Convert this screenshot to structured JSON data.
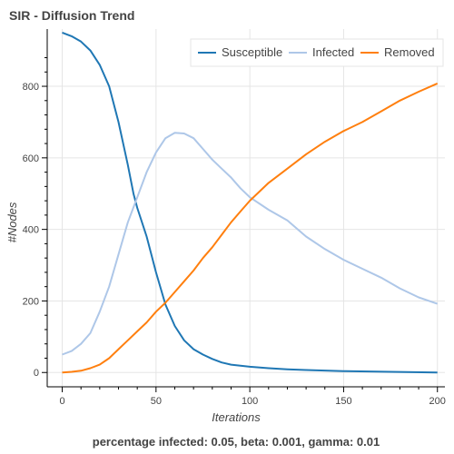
{
  "chart_data": {
    "type": "line",
    "title": "SIR - Diffusion Trend",
    "xlabel": "Iterations",
    "ylabel": "#Nodes",
    "xlim": [
      -8,
      204
    ],
    "ylim": [
      -40,
      960
    ],
    "xticks": [
      0,
      50,
      100,
      150,
      200
    ],
    "yticks": [
      0,
      200,
      400,
      600,
      800
    ],
    "grid": true,
    "legend": "top-right",
    "footer": "percentage infected: 0.05, beta: 0.001, gamma: 0.01",
    "series": [
      {
        "name": "Susceptible",
        "color": "#1f77b4",
        "points": [
          [
            0,
            950
          ],
          [
            5,
            940
          ],
          [
            10,
            925
          ],
          [
            15,
            900
          ],
          [
            20,
            860
          ],
          [
            25,
            800
          ],
          [
            30,
            700
          ],
          [
            35,
            580
          ],
          [
            38,
            500
          ],
          [
            40,
            460
          ],
          [
            45,
            380
          ],
          [
            50,
            280
          ],
          [
            55,
            190
          ],
          [
            60,
            130
          ],
          [
            65,
            90
          ],
          [
            70,
            65
          ],
          [
            75,
            50
          ],
          [
            80,
            38
          ],
          [
            85,
            28
          ],
          [
            90,
            22
          ],
          [
            100,
            16
          ],
          [
            110,
            12
          ],
          [
            120,
            9
          ],
          [
            130,
            7
          ],
          [
            150,
            4
          ],
          [
            175,
            2
          ],
          [
            200,
            0
          ]
        ]
      },
      {
        "name": "Infected",
        "color": "#aec7e8",
        "points": [
          [
            0,
            50
          ],
          [
            5,
            60
          ],
          [
            10,
            80
          ],
          [
            15,
            110
          ],
          [
            20,
            170
          ],
          [
            25,
            240
          ],
          [
            30,
            330
          ],
          [
            35,
            420
          ],
          [
            40,
            490
          ],
          [
            45,
            560
          ],
          [
            50,
            615
          ],
          [
            55,
            655
          ],
          [
            60,
            670
          ],
          [
            65,
            668
          ],
          [
            70,
            655
          ],
          [
            75,
            625
          ],
          [
            80,
            595
          ],
          [
            85,
            570
          ],
          [
            90,
            545
          ],
          [
            95,
            515
          ],
          [
            100,
            490
          ],
          [
            110,
            455
          ],
          [
            120,
            425
          ],
          [
            130,
            380
          ],
          [
            140,
            345
          ],
          [
            150,
            315
          ],
          [
            160,
            290
          ],
          [
            170,
            265
          ],
          [
            180,
            235
          ],
          [
            190,
            210
          ],
          [
            200,
            192
          ]
        ]
      },
      {
        "name": "Removed",
        "color": "#ff7f0e",
        "points": [
          [
            0,
            0
          ],
          [
            5,
            2
          ],
          [
            10,
            5
          ],
          [
            15,
            12
          ],
          [
            20,
            22
          ],
          [
            25,
            40
          ],
          [
            30,
            65
          ],
          [
            35,
            90
          ],
          [
            40,
            115
          ],
          [
            45,
            140
          ],
          [
            50,
            170
          ],
          [
            55,
            195
          ],
          [
            60,
            225
          ],
          [
            65,
            255
          ],
          [
            70,
            285
          ],
          [
            75,
            320
          ],
          [
            80,
            350
          ],
          [
            85,
            385
          ],
          [
            90,
            420
          ],
          [
            95,
            450
          ],
          [
            100,
            480
          ],
          [
            110,
            530
          ],
          [
            120,
            570
          ],
          [
            130,
            610
          ],
          [
            140,
            645
          ],
          [
            150,
            675
          ],
          [
            160,
            700
          ],
          [
            170,
            730
          ],
          [
            180,
            760
          ],
          [
            190,
            785
          ],
          [
            200,
            808
          ]
        ]
      }
    ]
  }
}
